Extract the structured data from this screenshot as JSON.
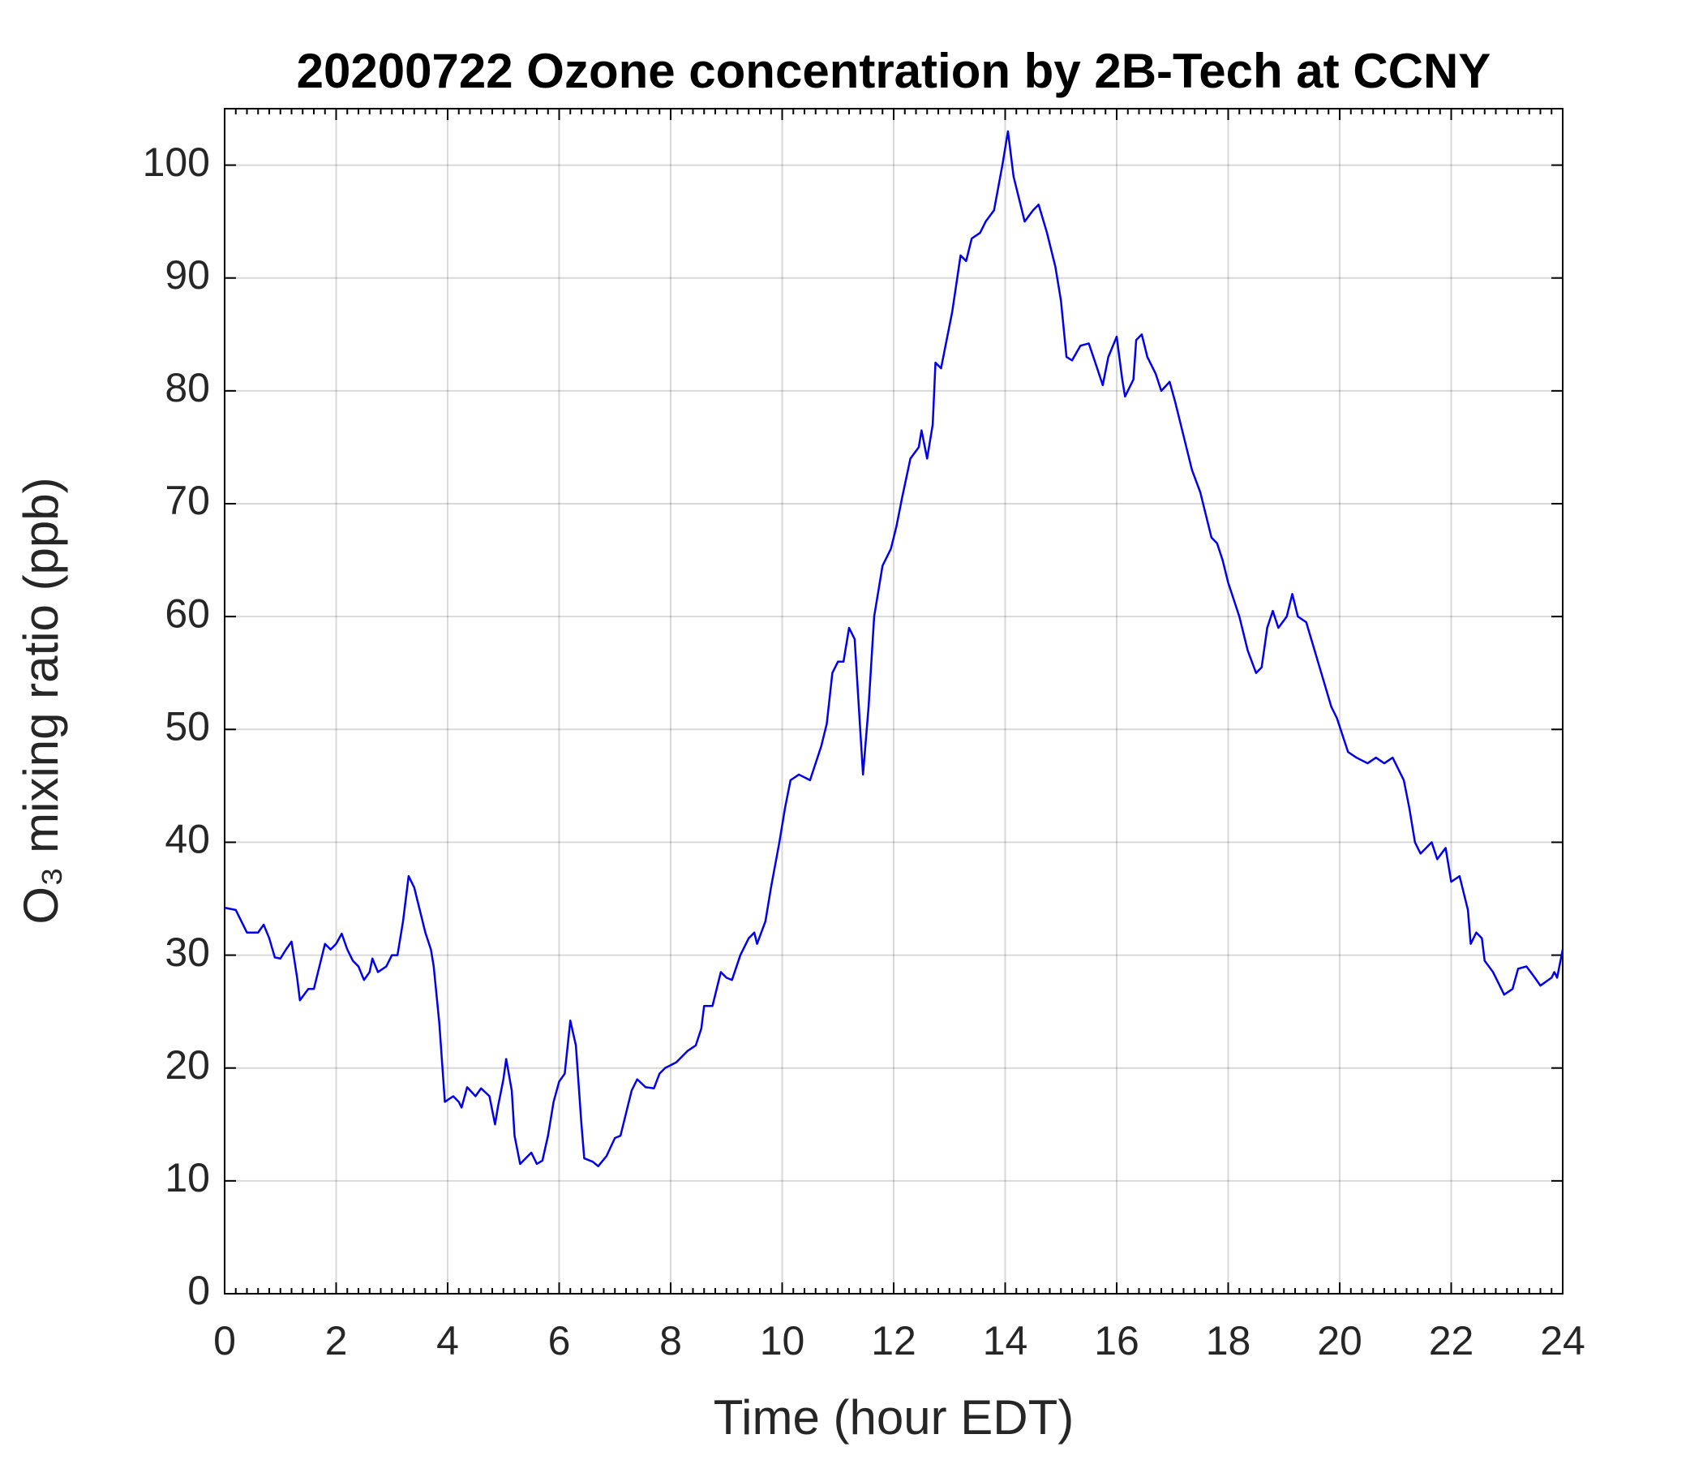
{
  "chart_data": {
    "type": "line",
    "title": "20200722 Ozone concentration by 2B-Tech at CCNY",
    "xlabel": "Time (hour EDT)",
    "ylabel": "O₃ mixing ratio (ppb)",
    "xlim": [
      0,
      24
    ],
    "xticks": [
      0,
      2,
      4,
      6,
      8,
      10,
      12,
      14,
      16,
      18,
      20,
      22,
      24
    ],
    "ylim": [
      0,
      105
    ],
    "yticks": [
      0,
      10,
      20,
      30,
      40,
      50,
      60,
      70,
      80,
      90,
      100
    ],
    "grid": true,
    "x": [
      0,
      0.2,
      0.3,
      0.4,
      0.6,
      0.7,
      0.8,
      0.9,
      1.0,
      1.1,
      1.2,
      1.3,
      1.35,
      1.5,
      1.6,
      1.7,
      1.8,
      1.9,
      2.0,
      2.1,
      2.2,
      2.3,
      2.4,
      2.5,
      2.6,
      2.65,
      2.75,
      2.9,
      3.0,
      3.1,
      3.2,
      3.3,
      3.4,
      3.5,
      3.6,
      3.7,
      3.75,
      3.85,
      3.95,
      4.1,
      4.2,
      4.25,
      4.35,
      4.5,
      4.6,
      4.75,
      4.85,
      4.9,
      5.0,
      5.05,
      5.15,
      5.2,
      5.3,
      5.4,
      5.5,
      5.6,
      5.7,
      5.8,
      5.9,
      6.0,
      6.1,
      6.2,
      6.3,
      6.4,
      6.45,
      6.6,
      6.7,
      6.85,
      7.0,
      7.1,
      7.2,
      7.3,
      7.4,
      7.55,
      7.7,
      7.8,
      7.9,
      8.1,
      8.3,
      8.45,
      8.55,
      8.6,
      8.75,
      8.9,
      9.0,
      9.1,
      9.25,
      9.4,
      9.5,
      9.55,
      9.7,
      9.8,
      9.95,
      10.05,
      10.15,
      10.3,
      10.5,
      10.6,
      10.7,
      10.8,
      10.9,
      11.0,
      11.1,
      11.2,
      11.3,
      11.4,
      11.45,
      11.55,
      11.65,
      11.8,
      11.95,
      12.05,
      12.15,
      12.3,
      12.45,
      12.5,
      12.6,
      12.7,
      12.75,
      12.85,
      12.95,
      13.05,
      13.2,
      13.3,
      13.4,
      13.55,
      13.65,
      13.8,
      13.95,
      14.05,
      14.15,
      14.25,
      14.35,
      14.5,
      14.6,
      14.75,
      14.9,
      15.0,
      15.1,
      15.2,
      15.35,
      15.5,
      15.65,
      15.75,
      15.85,
      16.0,
      16.1,
      16.15,
      16.3,
      16.35,
      16.45,
      16.55,
      16.7,
      16.8,
      16.95,
      17.05,
      17.2,
      17.35,
      17.5,
      17.6,
      17.7,
      17.8,
      17.9,
      18.0,
      18.2,
      18.35,
      18.5,
      18.6,
      18.7,
      18.8,
      18.9,
      19.05,
      19.15,
      19.25,
      19.4,
      19.55,
      19.7,
      19.85,
      19.95,
      20.05,
      20.15,
      20.3,
      20.5,
      20.65,
      20.8,
      20.95,
      21.15,
      21.25,
      21.35,
      21.45,
      21.55,
      21.65,
      21.75,
      21.9,
      22.0,
      22.15,
      22.3,
      22.35,
      22.45,
      22.55,
      22.6,
      22.75,
      22.85,
      22.95,
      23.1,
      23.2,
      23.35,
      23.5,
      23.6,
      23.8,
      23.85,
      23.9,
      24.0
    ],
    "series": [
      {
        "color": "#0000ee",
        "values": [
          34.2,
          34,
          33,
          32,
          32,
          32.7,
          31.5,
          29.8,
          29.7,
          30.5,
          31.2,
          28,
          26,
          27,
          27,
          29,
          31,
          30.5,
          31,
          31.9,
          30.5,
          29.5,
          29,
          27.8,
          28.5,
          29.7,
          28.5,
          29,
          30,
          30,
          33,
          37,
          36,
          34,
          32,
          30.5,
          29,
          24,
          17,
          17.5,
          17,
          16.5,
          18.3,
          17.5,
          18.2,
          17.5,
          15,
          16.5,
          19,
          20.8,
          18,
          14,
          11.5,
          12,
          12.5,
          11.5,
          11.8,
          14,
          17,
          18.8,
          19.5,
          24.2,
          22,
          15,
          12,
          11.7,
          11.3,
          12.2,
          13.8,
          14,
          16,
          18,
          19,
          18.3,
          18.2,
          19.5,
          20,
          20.5,
          21.5,
          22,
          23.5,
          25.5,
          25.5,
          28.5,
          28,
          27.8,
          30,
          31.5,
          32,
          31,
          33,
          36,
          40,
          43,
          45.5,
          46,
          45.5,
          47,
          48.5,
          50.5,
          55,
          56,
          56,
          59,
          58,
          50,
          46,
          52,
          60,
          64.5,
          66,
          68,
          70.5,
          74,
          75,
          76.5,
          74,
          77,
          82.5,
          82,
          84.5,
          87,
          92,
          91.5,
          93.5,
          94,
          95,
          96,
          100,
          103,
          99,
          97,
          95,
          96,
          96.5,
          94,
          91,
          88,
          83,
          82.7,
          84,
          84.2,
          82,
          80.5,
          83,
          84.8,
          81,
          79.5,
          81,
          84.5,
          85,
          83,
          81.5,
          80,
          80.8,
          79,
          76,
          73,
          71,
          69,
          67,
          66.5,
          65,
          63,
          60,
          57,
          55,
          55.5,
          59,
          60.5,
          59,
          60,
          62,
          60,
          59.5,
          57,
          54.5,
          52,
          51,
          49.5,
          48,
          47.5,
          47,
          47.5,
          47,
          47.5,
          45.5,
          43,
          40,
          39,
          39.5,
          40,
          38.5,
          39.5,
          36.5,
          37,
          34,
          31,
          32,
          31.5,
          29.5,
          28.5,
          27.5,
          26.5,
          27,
          28.8,
          29,
          28,
          27.3,
          28,
          28.5,
          28,
          30.5
        ]
      }
    ]
  }
}
